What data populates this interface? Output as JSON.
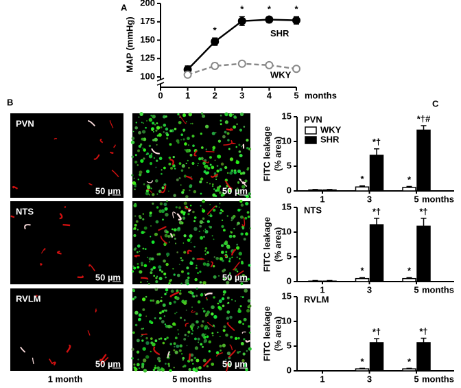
{
  "chart_data": [
    {
      "type": "line",
      "panel_label": "A",
      "ylabel": "MAP (mmHg)",
      "xlabel": "months",
      "xlim": [
        0,
        5
      ],
      "xticks": [
        0,
        1,
        2,
        3,
        4,
        5
      ],
      "ylim": [
        100,
        200
      ],
      "yticks": [
        100,
        125,
        150,
        175,
        200
      ],
      "x": [
        1,
        2,
        3,
        4,
        5
      ],
      "series": [
        {
          "name": "SHR",
          "color": "#000000",
          "dashed": false,
          "filled": true,
          "values": [
            110,
            148,
            176,
            178,
            177
          ],
          "errors": [
            5,
            5,
            6,
            4,
            5
          ],
          "marks": [
            null,
            "*",
            "*",
            "*",
            "*"
          ]
        },
        {
          "name": "WKY",
          "color": "#888888",
          "dashed": true,
          "filled": false,
          "values": [
            103,
            115,
            118,
            116,
            111
          ],
          "errors": [
            3,
            4,
            3,
            3,
            3
          ],
          "marks": [
            null,
            null,
            null,
            null,
            null
          ]
        }
      ]
    },
    {
      "type": "bar",
      "panel_label": "C",
      "title": "PVN",
      "ylabel": [
        "FITC leakage",
        "(% area)"
      ],
      "xlabel": "months",
      "legend": true,
      "categories": [
        "1",
        "3",
        "5"
      ],
      "ylim": [
        0,
        15
      ],
      "yticks": [
        0,
        5,
        10,
        15
      ],
      "series": [
        {
          "name": "WKY",
          "color": "#ffffff",
          "values": [
            0.2,
            0.8,
            0.7
          ],
          "errors": [
            0.1,
            0.2,
            0.2
          ],
          "marks": [
            null,
            "*",
            "*"
          ]
        },
        {
          "name": "SHR",
          "color": "#000000",
          "values": [
            0.2,
            7.2,
            12.3
          ],
          "errors": [
            0.1,
            1.3,
            0.9
          ],
          "marks": [
            null,
            "*†",
            "*†#"
          ]
        }
      ]
    },
    {
      "type": "bar",
      "title": "NTS",
      "ylabel": [
        "FITC leakage",
        "(% area)"
      ],
      "xlabel": "months",
      "legend": false,
      "categories": [
        "1",
        "3",
        "5"
      ],
      "ylim": [
        0,
        15
      ],
      "yticks": [
        0,
        5,
        10,
        15
      ],
      "series": [
        {
          "name": "WKY",
          "color": "#ffffff",
          "values": [
            0.1,
            0.6,
            0.6
          ],
          "errors": [
            0.1,
            0.2,
            0.2
          ],
          "marks": [
            null,
            "*",
            "*"
          ]
        },
        {
          "name": "SHR",
          "color": "#000000",
          "values": [
            0.1,
            11.5,
            11.2
          ],
          "errors": [
            0.1,
            1.3,
            1.6
          ],
          "marks": [
            null,
            "*†",
            "*†"
          ]
        }
      ]
    },
    {
      "type": "bar",
      "title": "RVLM",
      "ylabel": [
        "FITC leakage",
        "(% area)"
      ],
      "xlabel": "months",
      "legend": false,
      "categories": [
        "1",
        "3",
        "5"
      ],
      "ylim": [
        0,
        15
      ],
      "yticks": [
        0,
        5,
        10,
        15
      ],
      "series": [
        {
          "name": "WKY",
          "color": "#ffffff",
          "values": [
            0,
            0.4,
            0.4
          ],
          "errors": [
            0,
            0.1,
            0.1
          ],
          "marks": [
            null,
            "*",
            "*"
          ]
        },
        {
          "name": "SHR",
          "color": "#000000",
          "values": [
            0,
            5.7,
            5.7
          ],
          "errors": [
            0,
            0.8,
            0.9
          ],
          "marks": [
            null,
            "*†",
            "*†"
          ]
        }
      ]
    }
  ],
  "images": {
    "panel_label": "B",
    "rows": [
      "PVN",
      "NTS",
      "RVLM"
    ],
    "columns": [
      "1 month",
      "5 months"
    ],
    "scale_bar": "50 µm"
  }
}
